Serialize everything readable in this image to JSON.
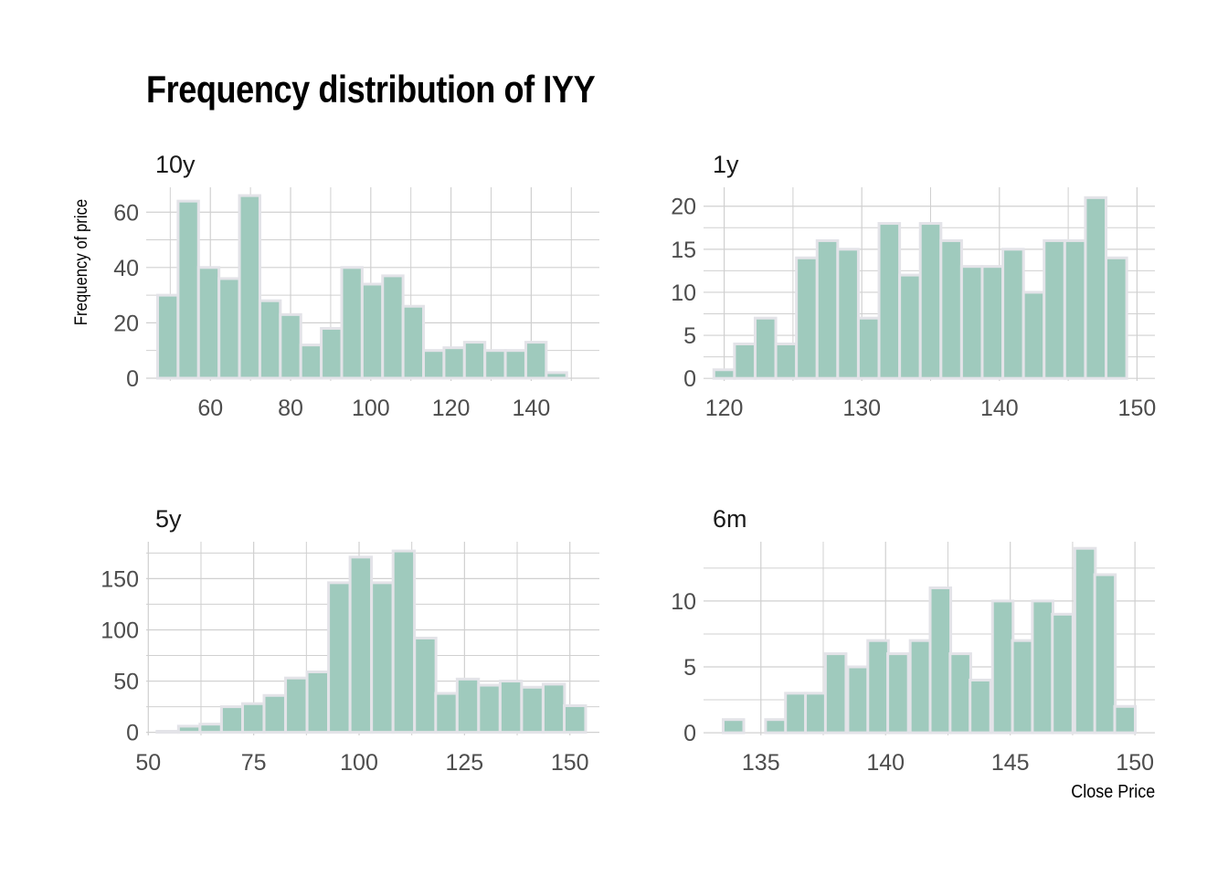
{
  "title": "Frequency distribution of IYY",
  "ylabel": "Frequency of price",
  "xlabel": "Close Price",
  "colors": {
    "bar_fill": "#9fcabd",
    "bar_stroke": "#e3e3e8",
    "grid": "#d0d0d0",
    "tick": "#4d4d4d"
  },
  "chart_data": [
    {
      "type": "bar",
      "panel": "10y",
      "xlim": [
        44,
        157
      ],
      "ylim": [
        -1,
        69
      ],
      "x_ticks": [
        60,
        80,
        100,
        120,
        140
      ],
      "y_ticks": [
        0,
        20,
        40,
        60
      ],
      "bin_width": 5.1,
      "bin_centers": [
        49.4,
        54.5,
        59.6,
        64.7,
        69.8,
        74.9,
        80.0,
        85.1,
        90.2,
        95.3,
        100.4,
        105.5,
        110.6,
        115.7,
        120.8,
        125.9,
        131.0,
        136.1,
        141.2,
        146.3,
        151.4
      ],
      "values": [
        30,
        64,
        40,
        36,
        66,
        28,
        23,
        12,
        18,
        40,
        34,
        37,
        26,
        10,
        11,
        13,
        10,
        10,
        13,
        2,
        0
      ]
    },
    {
      "type": "bar",
      "panel": "1y",
      "xlim": [
        118.5,
        151.3
      ],
      "ylim": [
        -0.3,
        22.2
      ],
      "x_ticks": [
        120,
        130,
        140,
        150
      ],
      "y_ticks": [
        0,
        5,
        10,
        15,
        20
      ],
      "bin_width": 1.5,
      "bin_centers": [
        120.0,
        121.5,
        123.0,
        124.5,
        126.0,
        127.5,
        129.0,
        130.5,
        132.0,
        133.5,
        135.0,
        136.5,
        138.0,
        139.5,
        141.0,
        142.5,
        144.0,
        145.5,
        147.0,
        148.5
      ],
      "values": [
        1,
        4,
        7,
        4,
        14,
        16,
        15,
        7,
        18,
        12,
        18,
        16,
        13,
        13,
        15,
        10,
        16,
        16,
        21,
        14
      ]
    },
    {
      "type": "bar",
      "panel": "5y",
      "xlim": [
        49.5,
        157
      ],
      "ylim": [
        -3,
        186
      ],
      "x_ticks": [
        50,
        75,
        100,
        125,
        150
      ],
      "y_ticks": [
        0,
        50,
        100,
        150
      ],
      "bin_width": 5.08,
      "bin_centers": [
        54.6,
        59.7,
        64.8,
        69.9,
        74.9,
        80.0,
        85.1,
        90.2,
        95.3,
        100.4,
        105.5,
        110.6,
        115.7,
        120.7,
        125.8,
        130.9,
        136.0,
        141.1,
        146.2,
        151.2
      ],
      "values": [
        1,
        6,
        8,
        25,
        28,
        36,
        53,
        59,
        146,
        171,
        146,
        177,
        92,
        38,
        52,
        46,
        50,
        44,
        47,
        26
      ]
    },
    {
      "type": "bar",
      "panel": "6m",
      "xlim": [
        132.7,
        150.8
      ],
      "ylim": [
        -0.2,
        14.5
      ],
      "x_ticks": [
        135,
        140,
        145,
        150
      ],
      "y_ticks": [
        0,
        5,
        10
      ],
      "bin_width": 0.826,
      "bin_centers": [
        133.9,
        134.7,
        135.6,
        136.4,
        137.2,
        138.0,
        138.9,
        139.7,
        140.5,
        141.4,
        142.2,
        143.0,
        143.8,
        144.7,
        145.5,
        146.3,
        147.1,
        148.0,
        148.8,
        149.6
      ],
      "values": [
        1,
        0,
        1,
        3,
        3,
        6,
        5,
        7,
        6,
        7,
        11,
        6,
        4,
        10,
        7,
        10,
        9,
        14,
        12,
        2
      ]
    }
  ]
}
